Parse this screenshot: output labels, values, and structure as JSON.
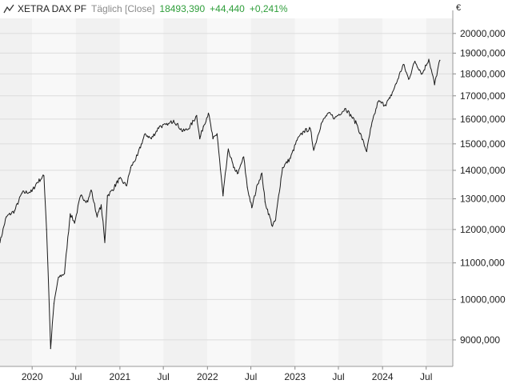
{
  "header": {
    "instrument": "XETRA DAX PF",
    "period": "Täglich [Close]",
    "last": "18493,390",
    "change": "+44,440",
    "change_pct": "+0,241%"
  },
  "colors": {
    "line": "#1a1a1a",
    "positive": "#2e9e3a",
    "band_a": "#f1f1f1",
    "band_b": "#f8f8f8",
    "grid": "#dcdcdc"
  },
  "chart_data": {
    "type": "line",
    "title": "XETRA DAX PF",
    "currency": "€",
    "y_scale": "log",
    "ylim": [
      8400,
      20800
    ],
    "y_ticks": [
      9000,
      10000,
      11000,
      12000,
      13000,
      14000,
      15000,
      16000,
      17000,
      18000,
      19000,
      20000
    ],
    "y_tick_labels": [
      "9000,000",
      "10000,000",
      "11000,000",
      "12000,000",
      "13000,000",
      "14000,000",
      "15000,000",
      "16000,000",
      "17000,000",
      "18000,000",
      "19000,000",
      "20000,000"
    ],
    "xlim": [
      "2019-08-20",
      "2024-10-20"
    ],
    "x_ticks": [
      "2020-01-01",
      "2020-07-01",
      "2021-01-01",
      "2021-07-01",
      "2022-01-01",
      "2022-07-01",
      "2023-01-01",
      "2023-07-01",
      "2024-01-01",
      "2024-07-01"
    ],
    "x_tick_labels": [
      "2020",
      "Jul",
      "2021",
      "Jul",
      "2022",
      "Jul",
      "2023",
      "Jul",
      "2024",
      "Jul"
    ],
    "grid": true,
    "series": [
      {
        "name": "XETRA DAX PF",
        "x": [
          "2019-08-20",
          "2019-09-15",
          "2019-10-20",
          "2019-11-20",
          "2019-12-31",
          "2020-01-20",
          "2020-02-19",
          "2020-03-01",
          "2020-03-18",
          "2020-04-01",
          "2020-04-20",
          "2020-05-15",
          "2020-06-08",
          "2020-06-26",
          "2020-07-21",
          "2020-08-20",
          "2020-09-03",
          "2020-09-28",
          "2020-10-15",
          "2020-10-30",
          "2020-11-10",
          "2020-12-01",
          "2020-12-30",
          "2021-01-29",
          "2021-02-15",
          "2021-03-15",
          "2021-04-16",
          "2021-05-12",
          "2021-06-15",
          "2021-07-19",
          "2021-08-13",
          "2021-09-20",
          "2021-10-15",
          "2021-11-17",
          "2021-11-30",
          "2021-12-15",
          "2022-01-05",
          "2022-01-24",
          "2022-02-10",
          "2022-02-24",
          "2022-03-07",
          "2022-03-29",
          "2022-04-20",
          "2022-05-09",
          "2022-06-01",
          "2022-06-16",
          "2022-07-05",
          "2022-07-29",
          "2022-08-16",
          "2022-08-29",
          "2022-09-29",
          "2022-10-12",
          "2022-11-10",
          "2022-12-13",
          "2023-01-10",
          "2023-02-07",
          "2023-03-06",
          "2023-03-20",
          "2023-04-20",
          "2023-05-19",
          "2023-06-16",
          "2023-07-31",
          "2023-08-25",
          "2023-09-15",
          "2023-10-27",
          "2023-11-15",
          "2023-12-14",
          "2024-01-12",
          "2024-02-01",
          "2024-02-27",
          "2024-03-28",
          "2024-04-19",
          "2024-05-15",
          "2024-06-14",
          "2024-07-12",
          "2024-08-05",
          "2024-08-27"
        ],
        "y": [
          11600,
          12400,
          12600,
          13200,
          13250,
          13550,
          13800,
          12000,
          8800,
          9900,
          10600,
          10700,
          12500,
          12200,
          13100,
          12900,
          13300,
          12400,
          12800,
          11600,
          13100,
          13300,
          13700,
          13450,
          14100,
          14550,
          15400,
          15200,
          15700,
          15750,
          15950,
          15500,
          15600,
          16150,
          15200,
          15700,
          16250,
          15200,
          15400,
          14050,
          13100,
          14800,
          14100,
          13900,
          14500,
          13400,
          12700,
          13500,
          13900,
          12900,
          12100,
          12300,
          14100,
          14450,
          15150,
          15500,
          15600,
          14750,
          15800,
          16250,
          16050,
          16450,
          16100,
          15800,
          14700,
          15700,
          16750,
          16600,
          16900,
          17550,
          18450,
          17750,
          18600,
          18000,
          18700,
          17500,
          18650
        ]
      }
    ]
  }
}
